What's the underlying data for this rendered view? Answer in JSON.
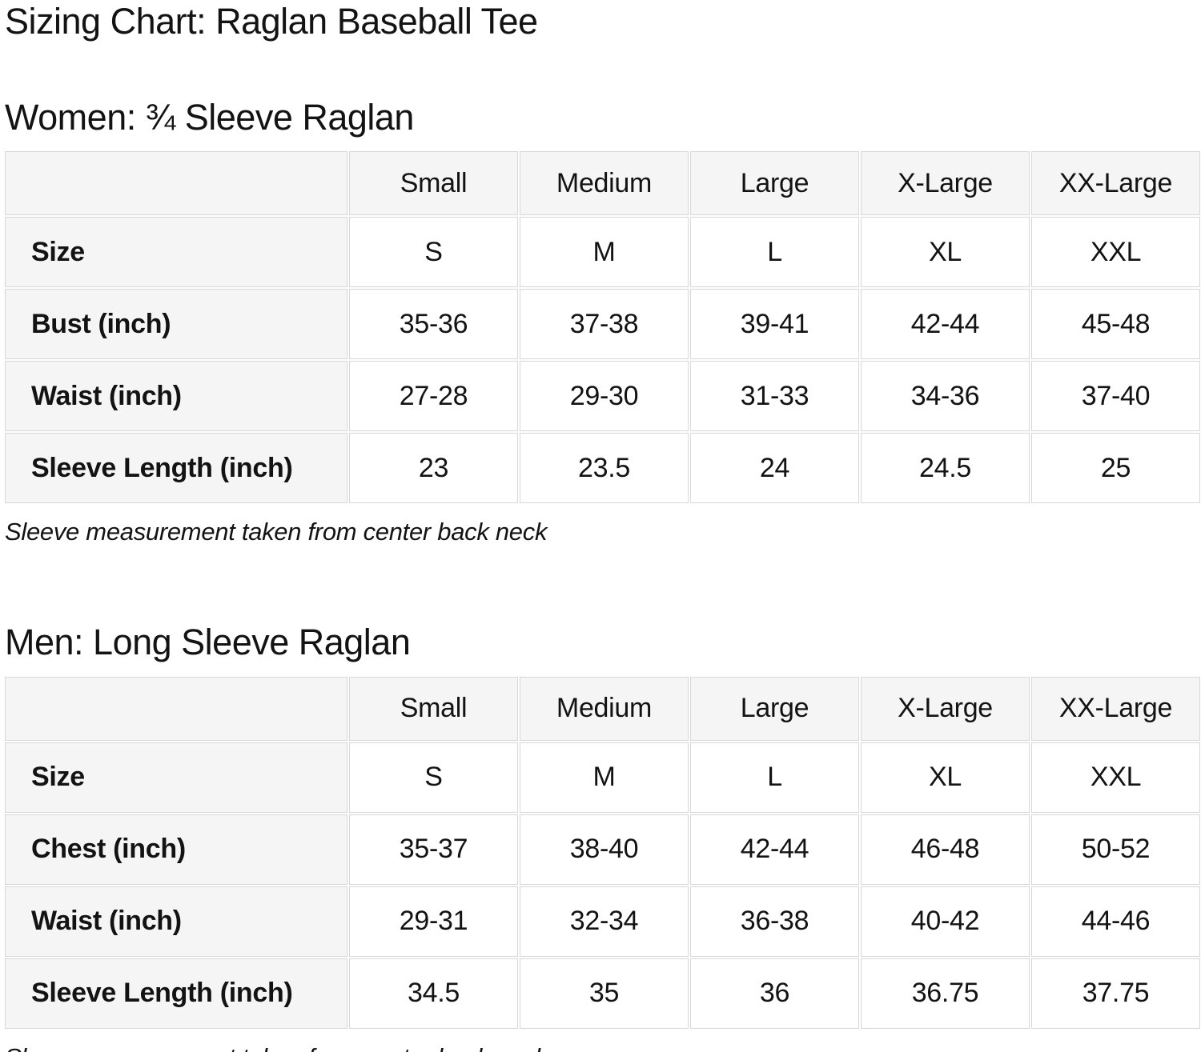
{
  "page": {
    "title": "Sizing Chart: Raglan Baseball Tee"
  },
  "colors": {
    "page_bg": "#ffffff",
    "text": "#131313",
    "table_border": "#d7d7d7",
    "header_cell_bg": "#f5f5f5"
  },
  "chart_data": [
    {
      "type": "table",
      "title": "Women: ¾ Sleeve Raglan",
      "columns": [
        "",
        "Small",
        "Medium",
        "Large",
        "X-Large",
        "XX-Large"
      ],
      "rows": [
        {
          "label": "Size",
          "values": [
            "S",
            "M",
            "L",
            "XL",
            "XXL"
          ]
        },
        {
          "label": "Bust (inch)",
          "values": [
            "35-36",
            "37-38",
            "39-41",
            "42-44",
            "45-48"
          ]
        },
        {
          "label": "Waist (inch)",
          "values": [
            "27-28",
            "29-30",
            "31-33",
            "34-36",
            "37-40"
          ]
        },
        {
          "label": "Sleeve Length (inch)",
          "values": [
            "23",
            "23.5",
            "24",
            "24.5",
            "25"
          ]
        }
      ],
      "note": "Sleeve measurement taken from center back neck"
    },
    {
      "type": "table",
      "title": "Men: Long Sleeve Raglan",
      "columns": [
        "",
        "Small",
        "Medium",
        "Large",
        "X-Large",
        "XX-Large"
      ],
      "rows": [
        {
          "label": "Size",
          "values": [
            "S",
            "M",
            "L",
            "XL",
            "XXL"
          ]
        },
        {
          "label": "Chest (inch)",
          "values": [
            "35-37",
            "38-40",
            "42-44",
            "46-48",
            "50-52"
          ]
        },
        {
          "label": "Waist (inch)",
          "values": [
            "29-31",
            "32-34",
            "36-38",
            "40-42",
            "44-46"
          ]
        },
        {
          "label": "Sleeve Length (inch)",
          "values": [
            "34.5",
            "35",
            "36",
            "36.75",
            "37.75"
          ]
        }
      ],
      "note": "Sleeve measurement taken from center back neck"
    }
  ]
}
